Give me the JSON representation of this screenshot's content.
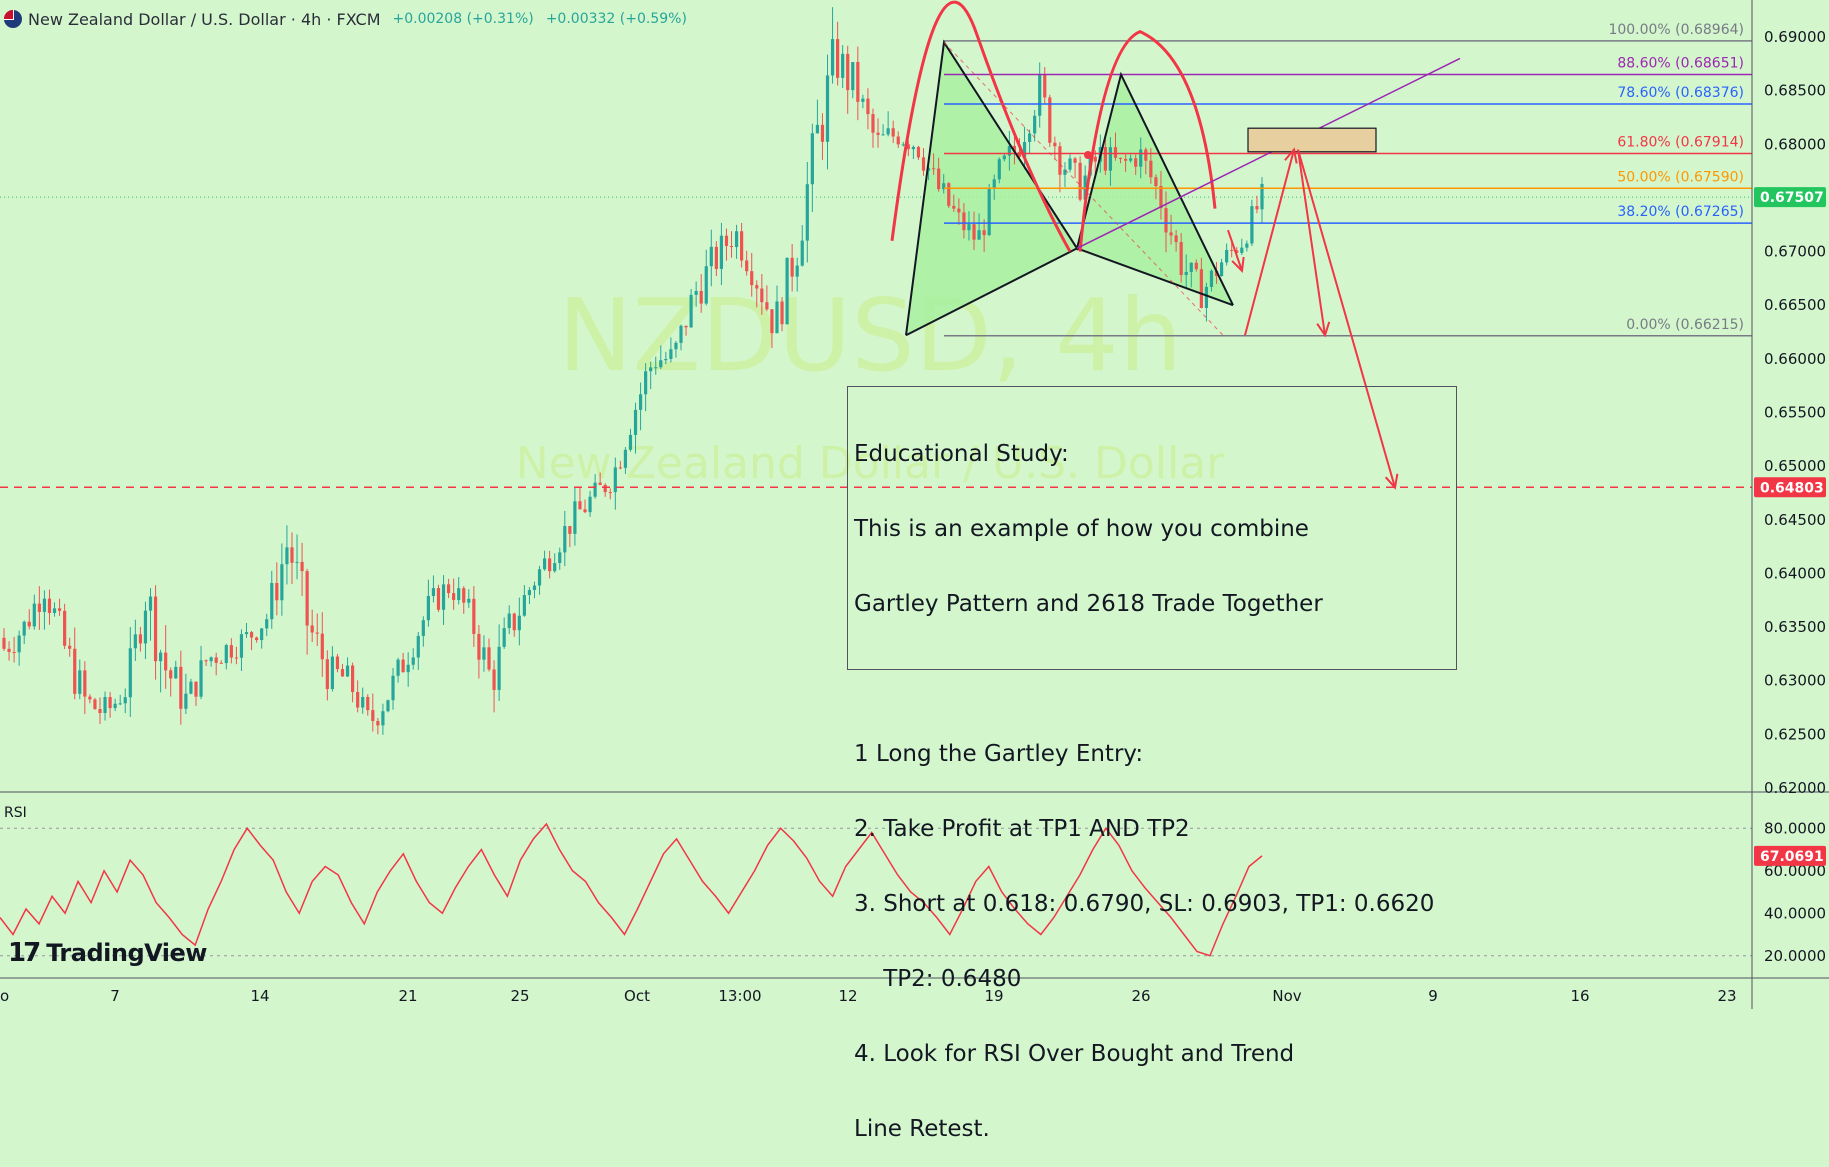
{
  "header": {
    "title": "New Zealand Dollar / U.S. Dollar · 4h · FXCM",
    "change1": "+0.00208 (+0.31%)",
    "change2": "+0.00332 (+0.59%)"
  },
  "watermark": {
    "symbol": "NZDUSD, 4h",
    "name": "New Zealand Dollar / U.S. Dollar"
  },
  "logo": {
    "text": "TradingView",
    "mark": "17"
  },
  "annotation": {
    "heading": "Educational Study:",
    "lines": [
      "This is an example of how you combine",
      "Gartley Pattern and 2618 Trade Together",
      "",
      "1 Long the Gartley Entry:",
      "2. Take Profit at TP1 AND TP2",
      "3. Short at 0.618: 0.6790, SL: 0.6903, TP1: 0.6620",
      "    TP2: 0.6480",
      "4. Look for RSI Over Bought and Trend",
      "Line Retest."
    ]
  },
  "colors": {
    "background": "#d4f6cd",
    "up": "#26a69a",
    "down": "#ef5350",
    "drawing_red": "#f23645",
    "pattern_fill": "#a8f0a0",
    "rsi_line": "#f23645",
    "current_price_bg": "#22c55e",
    "level_price_bg": "#f23645"
  },
  "chart_data": [
    {
      "type": "candlestick",
      "name": "price",
      "ylim": [
        0.62,
        0.69
      ],
      "y_ticks": [
        "0.69000",
        "0.68500",
        "0.68000",
        "0.67500",
        "0.67000",
        "0.66500",
        "0.66000",
        "0.65500",
        "0.65000",
        "0.64500",
        "0.64000",
        "0.63500",
        "0.63000",
        "0.62500",
        "0.62000"
      ],
      "x_ticks": [
        "o",
        "7",
        "14",
        "21",
        "25",
        "Oct",
        "13:00",
        "12",
        "19",
        "26",
        "Nov",
        "9",
        "16",
        "23"
      ],
      "ohlc_anchors": [
        [
          0.634,
          0.637,
          0.631,
          0.633
        ],
        [
          0.633,
          0.636,
          0.63,
          0.635
        ],
        [
          0.635,
          0.641,
          0.634,
          0.639
        ],
        [
          0.639,
          0.64,
          0.632,
          0.633
        ],
        [
          0.633,
          0.634,
          0.626,
          0.628
        ],
        [
          0.628,
          0.629,
          0.625,
          0.627
        ],
        [
          0.627,
          0.63,
          0.626,
          0.629
        ],
        [
          0.629,
          0.64,
          0.628,
          0.638
        ],
        [
          0.638,
          0.64,
          0.63,
          0.631
        ],
        [
          0.631,
          0.632,
          0.626,
          0.628
        ],
        [
          0.628,
          0.633,
          0.627,
          0.632
        ],
        [
          0.632,
          0.634,
          0.629,
          0.633
        ],
        [
          0.633,
          0.636,
          0.631,
          0.634
        ],
        [
          0.634,
          0.637,
          0.632,
          0.636
        ],
        [
          0.636,
          0.645,
          0.634,
          0.643
        ],
        [
          0.643,
          0.644,
          0.634,
          0.635
        ],
        [
          0.635,
          0.637,
          0.63,
          0.631
        ],
        [
          0.631,
          0.632,
          0.628,
          0.63
        ],
        [
          0.63,
          0.631,
          0.624,
          0.626
        ],
        [
          0.626,
          0.631,
          0.625,
          0.629
        ],
        [
          0.629,
          0.634,
          0.628,
          0.633
        ],
        [
          0.633,
          0.638,
          0.632,
          0.637
        ],
        [
          0.637,
          0.64,
          0.635,
          0.639
        ],
        [
          0.639,
          0.641,
          0.635,
          0.636
        ],
        [
          0.636,
          0.638,
          0.628,
          0.63
        ],
        [
          0.63,
          0.636,
          0.629,
          0.635
        ],
        [
          0.635,
          0.64,
          0.634,
          0.639
        ],
        [
          0.639,
          0.643,
          0.638,
          0.642
        ],
        [
          0.642,
          0.646,
          0.64,
          0.645
        ],
        [
          0.645,
          0.648,
          0.643,
          0.647
        ],
        [
          0.647,
          0.65,
          0.645,
          0.649
        ],
        [
          0.649,
          0.656,
          0.648,
          0.655
        ],
        [
          0.655,
          0.662,
          0.654,
          0.66
        ],
        [
          0.66,
          0.662,
          0.658,
          0.66
        ],
        [
          0.66,
          0.668,
          0.659,
          0.666
        ],
        [
          0.666,
          0.67,
          0.664,
          0.669
        ],
        [
          0.669,
          0.674,
          0.667,
          0.672
        ],
        [
          0.672,
          0.673,
          0.667,
          0.668
        ],
        [
          0.668,
          0.67,
          0.662,
          0.663
        ],
        [
          0.663,
          0.671,
          0.662,
          0.67
        ],
        [
          0.67,
          0.682,
          0.669,
          0.68
        ],
        [
          0.68,
          0.69,
          0.678,
          0.688
        ],
        [
          0.688,
          0.689,
          0.683,
          0.685
        ],
        [
          0.685,
          0.686,
          0.679,
          0.68
        ],
        [
          0.68,
          0.683,
          0.678,
          0.681
        ],
        [
          0.681,
          0.684,
          0.679,
          0.68
        ],
        [
          0.68,
          0.681,
          0.675,
          0.676
        ],
        [
          0.676,
          0.677,
          0.671,
          0.673
        ],
        [
          0.673,
          0.674,
          0.67,
          0.671
        ],
        [
          0.671,
          0.678,
          0.67,
          0.677
        ],
        [
          0.677,
          0.681,
          0.676,
          0.68
        ],
        [
          0.68,
          0.687,
          0.679,
          0.685
        ],
        [
          0.685,
          0.686,
          0.678,
          0.679
        ],
        [
          0.679,
          0.68,
          0.675,
          0.676
        ],
        [
          0.676,
          0.681,
          0.675,
          0.679
        ],
        [
          0.679,
          0.681,
          0.676,
          0.678
        ],
        [
          0.678,
          0.68,
          0.676,
          0.679
        ],
        [
          0.679,
          0.68,
          0.673,
          0.675
        ],
        [
          0.675,
          0.676,
          0.668,
          0.669
        ],
        [
          0.669,
          0.67,
          0.665,
          0.666
        ],
        [
          0.666,
          0.67,
          0.665,
          0.669
        ],
        [
          0.669,
          0.672,
          0.668,
          0.671
        ],
        [
          0.671,
          0.676,
          0.67,
          0.675
        ]
      ]
    },
    {
      "type": "fibonacci",
      "name": "fib retracement",
      "levels": [
        {
          "label": "100.00% (0.68964)",
          "value": 0.68964,
          "color": "#787b86"
        },
        {
          "label": "88.60% (0.68651)",
          "value": 0.68651,
          "color": "#9c27b0"
        },
        {
          "label": "78.60% (0.68376)",
          "value": 0.68376,
          "color": "#2962ff"
        },
        {
          "label": "61.80% (0.67914)",
          "value": 0.67914,
          "color": "#f23645"
        },
        {
          "label": "50.00% (0.67590)",
          "value": 0.6759,
          "color": "#ff9800"
        },
        {
          "label": "38.20% (0.67265)",
          "value": 0.67265,
          "color": "#2962ff"
        },
        {
          "label": "0.00% (0.66215)",
          "value": 0.66215,
          "color": "#787b86"
        }
      ]
    },
    {
      "type": "price_labels",
      "current_price": "0.67507",
      "target_level": "0.64803",
      "current_value": 0.67507,
      "target_value": 0.64803
    },
    {
      "type": "line",
      "name": "RSI",
      "label": "RSI",
      "ylim": [
        10,
        90
      ],
      "y_ticks": [
        "80.0000",
        "60.0000",
        "40.0000",
        "20.0000"
      ],
      "current_label": "67.0691",
      "values": [
        38,
        30,
        42,
        35,
        48,
        40,
        55,
        45,
        60,
        50,
        65,
        58,
        45,
        38,
        30,
        25,
        42,
        55,
        70,
        80,
        72,
        65,
        50,
        40,
        55,
        62,
        58,
        45,
        35,
        50,
        60,
        68,
        55,
        45,
        40,
        52,
        62,
        70,
        58,
        48,
        65,
        75,
        82,
        70,
        60,
        55,
        45,
        38,
        30,
        42,
        55,
        68,
        75,
        65,
        55,
        48,
        40,
        50,
        60,
        72,
        80,
        74,
        66,
        55,
        48,
        62,
        70,
        78,
        68,
        58,
        50,
        45,
        38,
        30,
        42,
        55,
        62,
        50,
        42,
        35,
        30,
        38,
        48,
        58,
        70,
        80,
        72,
        60,
        52,
        45,
        38,
        30,
        22,
        20,
        35,
        48,
        62,
        67
      ]
    }
  ]
}
